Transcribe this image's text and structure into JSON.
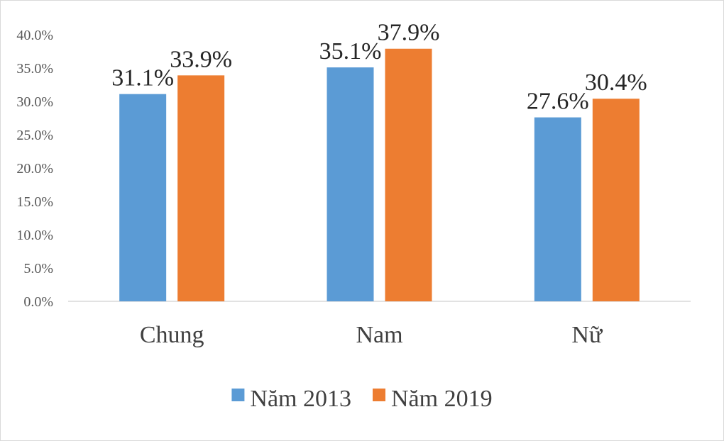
{
  "chart_data": {
    "type": "bar",
    "title": "",
    "xlabel": "",
    "ylabel": "",
    "categories": [
      "Chung",
      "Nam",
      "Nữ"
    ],
    "series": [
      {
        "name": "Năm 2013",
        "color": "#5b9bd5",
        "values": [
          31.1,
          35.1,
          27.6
        ],
        "data_labels": [
          "31.1%",
          "35.1%",
          "27.6%"
        ]
      },
      {
        "name": "Năm 2019",
        "color": "#ed7d31",
        "values": [
          33.9,
          37.9,
          30.4
        ],
        "data_labels": [
          "33.9%",
          "37.9%",
          "30.4%"
        ]
      }
    ],
    "ylim": [
      0,
      40
    ],
    "y_ticks": [
      0,
      5,
      10,
      15,
      20,
      25,
      30,
      35,
      40
    ],
    "y_tick_labels": [
      "0.0%",
      "5.0%",
      "10.0%",
      "15.0%",
      "20.0%",
      "25.0%",
      "30.0%",
      "35.0%",
      "40.0%"
    ],
    "grid": false,
    "legend_position": "bottom"
  }
}
